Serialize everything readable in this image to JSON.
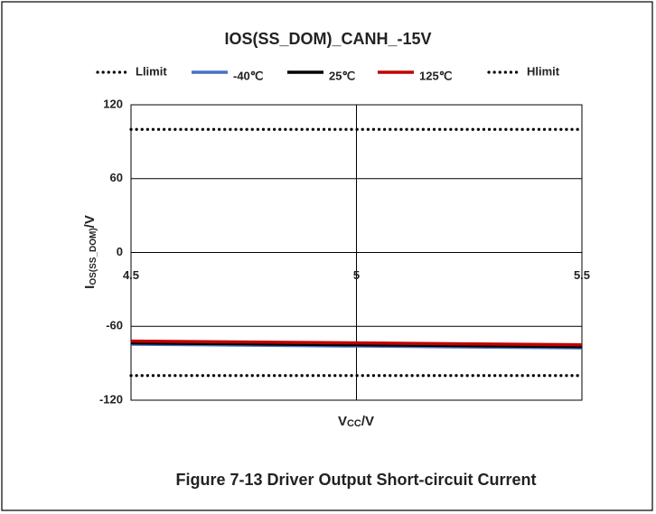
{
  "chart_data": {
    "type": "line",
    "title": "IOS(SS_DOM)_CANH_-15V",
    "xlabel_parts": [
      "V",
      "CC",
      "/V"
    ],
    "ylabel_parts": [
      "I",
      "OS(SS_DOM)",
      "/V"
    ],
    "caption": "Figure 7-13  Driver Output Short-circuit Current",
    "x": [
      4.5,
      5,
      5.5
    ],
    "xlim": [
      4.5,
      5.5
    ],
    "xticks": [
      4.5,
      5,
      5.5
    ],
    "ylim": [
      -120,
      120
    ],
    "yticks": [
      -120,
      -60,
      0,
      60,
      120
    ],
    "grid": true,
    "series": [
      {
        "name": "Llimit",
        "color": "#000000",
        "style": "dotted",
        "values": [
          -100,
          -100,
          -100
        ]
      },
      {
        "name": "-40℃",
        "color": "#4472c4",
        "style": "solid",
        "values": [
          -74.5,
          -76,
          -77.5
        ]
      },
      {
        "name": "25℃",
        "color": "#000000",
        "style": "solid",
        "values": [
          -73.5,
          -75,
          -76.5
        ]
      },
      {
        "name": "125℃",
        "color": "#c00000",
        "style": "solid",
        "values": [
          -72,
          -73.5,
          -75
        ]
      },
      {
        "name": "Hlimit",
        "color": "#000000",
        "style": "dotted",
        "values": [
          100,
          100,
          100
        ]
      }
    ]
  }
}
